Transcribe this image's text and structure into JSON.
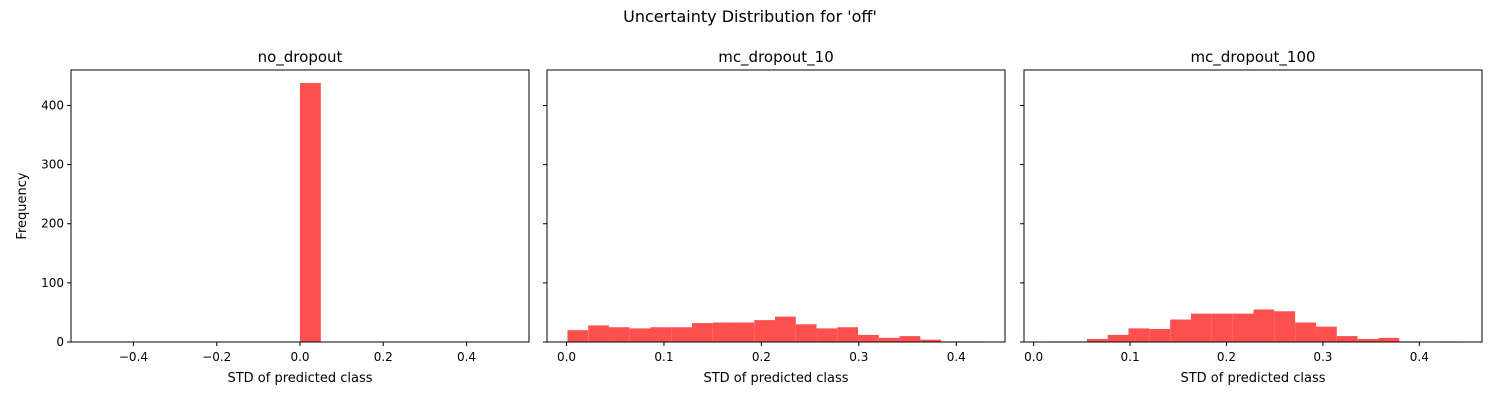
{
  "figure": {
    "title": "Uncertainty Distribution for 'off'"
  },
  "colors": {
    "bar": "#ff5050",
    "axis": "#000000",
    "background": "#ffffff"
  },
  "chart_data": [
    {
      "type": "bar",
      "title": "no_dropout",
      "xlabel": "STD of predicted class",
      "ylabel": "Frequency",
      "xlim": [
        -0.55,
        0.55
      ],
      "ylim": [
        0,
        460
      ],
      "xticks": [
        -0.4,
        -0.2,
        0.0,
        0.2,
        0.4
      ],
      "xtick_labels": [
        "−0.4",
        "−0.2",
        "0.0",
        "0.2",
        "0.4"
      ],
      "yticks": [
        0,
        100,
        200,
        300,
        400
      ],
      "ytick_labels": [
        "0",
        "100",
        "200",
        "300",
        "400"
      ],
      "bin_start": 0.0,
      "bin_width": 0.05,
      "values": [
        438
      ]
    },
    {
      "type": "bar",
      "title": "mc_dropout_10",
      "xlabel": "STD of predicted class",
      "ylabel": "",
      "xlim": [
        -0.02,
        0.45
      ],
      "ylim": [
        0,
        460
      ],
      "xticks": [
        0.0,
        0.1,
        0.2,
        0.3,
        0.4
      ],
      "xtick_labels": [
        "0.0",
        "0.1",
        "0.2",
        "0.3",
        "0.4"
      ],
      "yticks": [
        0,
        100,
        200,
        300,
        400
      ],
      "ytick_labels": [
        "",
        "",
        "",
        "",
        ""
      ],
      "bin_start": 0.001,
      "bin_width": 0.0213,
      "values": [
        20,
        28,
        25,
        23,
        25,
        25,
        32,
        33,
        33,
        37,
        43,
        30,
        23,
        25,
        12,
        7,
        10,
        4,
        1,
        1
      ]
    },
    {
      "type": "bar",
      "title": "mc_dropout_100",
      "xlabel": "STD of predicted class",
      "ylabel": "",
      "xlim": [
        -0.01,
        0.465
      ],
      "ylim": [
        0,
        460
      ],
      "xticks": [
        0.0,
        0.1,
        0.2,
        0.3,
        0.4
      ],
      "xtick_labels": [
        "0.0",
        "0.1",
        "0.2",
        "0.3",
        "0.4"
      ],
      "yticks": [
        0,
        100,
        200,
        300,
        400
      ],
      "ytick_labels": [
        "",
        "",
        "",
        "",
        ""
      ],
      "bin_start": 0.012,
      "bin_width": 0.0216,
      "values": [
        1,
        1,
        5,
        12,
        23,
        22,
        38,
        48,
        48,
        48,
        55,
        52,
        33,
        26,
        10,
        5,
        7,
        1,
        0,
        1
      ]
    }
  ]
}
